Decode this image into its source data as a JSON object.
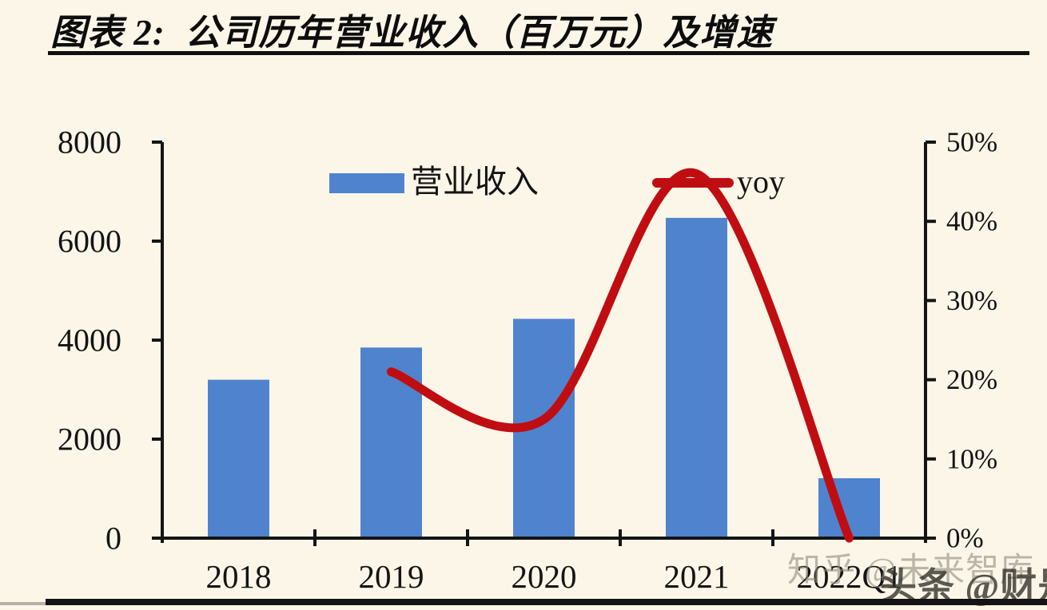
{
  "figure": {
    "title": "图表 2:  公司历年营业收入（百万元）及增速",
    "background_color": "#FBF6E8",
    "title_rule_color": "#101010",
    "axis_color": "#141414"
  },
  "legend": {
    "position": "top",
    "items": [
      {
        "label": "营业收入",
        "type": "bar",
        "color": "#4F83CD"
      },
      {
        "label": "yoy",
        "type": "line",
        "color": "#C00D12"
      }
    ]
  },
  "chart_data": {
    "type": "bar+line",
    "title": "公司历年营业收入（百万元）及增速",
    "categories": [
      "2018",
      "2019",
      "2020",
      "2021",
      "2022Q1"
    ],
    "series": [
      {
        "name": "营业收入",
        "type": "bar",
        "axis": "left",
        "unit": "百万元",
        "color": "#4F83CD",
        "values": [
          3200,
          3850,
          4430,
          6470,
          1210
        ]
      },
      {
        "name": "yoy",
        "type": "line",
        "axis": "right",
        "unit": "%",
        "color": "#C00D12",
        "values": [
          null,
          21,
          15,
          46,
          0
        ]
      }
    ],
    "left_axis": {
      "min": 0,
      "max": 8000,
      "step": 2000,
      "tick_labels": [
        "0",
        "2000",
        "4000",
        "6000",
        "8000"
      ]
    },
    "right_axis": {
      "min": 0,
      "max": 50,
      "step": 10,
      "tick_labels": [
        "0%",
        "10%",
        "20%",
        "30%",
        "40%",
        "50%"
      ]
    },
    "grid": false,
    "legend_position": "top"
  },
  "watermarks": [
    {
      "text": "知乎 @未来智库"
    },
    {
      "text": "头条 @财是"
    }
  ]
}
